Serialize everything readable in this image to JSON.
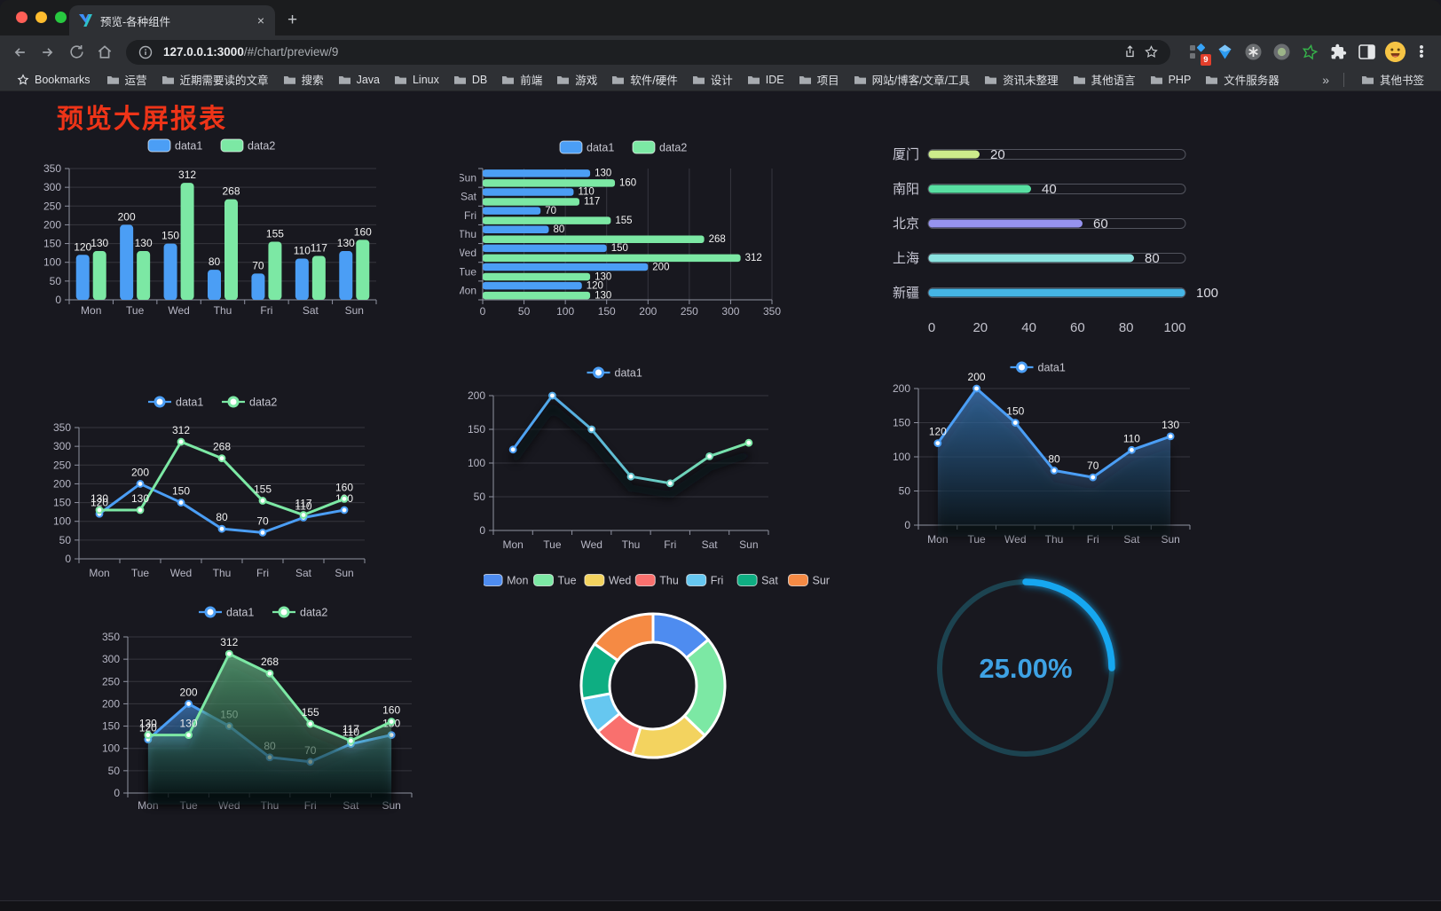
{
  "browser": {
    "traffic_lights": [
      "#ff5f57",
      "#febc2e",
      "#28c840"
    ],
    "tab": {
      "title": "预览-各种组件",
      "close": "×",
      "new_tab": "+"
    },
    "url_host": "127.0.0.1:3000",
    "url_path": "/#/chart/preview/9",
    "extension_badge": "9",
    "bookmarks_bar": {
      "star_label": "Bookmarks",
      "folders": [
        "运营",
        "近期需要读的文章",
        "搜索",
        "Java",
        "Linux",
        "DB",
        "前端",
        "游戏",
        "软件/硬件",
        "设计",
        "IDE",
        "项目",
        "网站/博客/文章/工具",
        "资讯未整理",
        "其他语言",
        "PHP",
        "文件服务器"
      ],
      "overflow": "»",
      "other": "其他书签"
    }
  },
  "page": {
    "title": "预览大屏报表"
  },
  "colors": {
    "data1": "#4b9ef5",
    "data2": "#7ce8a4",
    "title_red": "#ee3418",
    "axis": "#9093a2",
    "grid": "#36363f",
    "tick_text": "#b7b7c5",
    "value_text": "#f2f2f2"
  },
  "chart_data": [
    {
      "type": "bar",
      "categories": [
        "Mon",
        "Tue",
        "Wed",
        "Thu",
        "Fri",
        "Sat",
        "Sun"
      ],
      "series": [
        {
          "name": "data1",
          "color": "#4b9ef5",
          "values": [
            120,
            200,
            150,
            80,
            70,
            110,
            130
          ]
        },
        {
          "name": "data2",
          "color": "#7ce8a4",
          "values": [
            130,
            130,
            312,
            268,
            155,
            117,
            160
          ]
        }
      ],
      "ylim": [
        0,
        350
      ],
      "ystep": 50,
      "legend_position": "top",
      "grid": true,
      "point_labels": true
    },
    {
      "type": "bar-horizontal",
      "categories": [
        "Mon",
        "Tue",
        "Wed",
        "Thu",
        "Fri",
        "Sat",
        "Sun"
      ],
      "display_order": "Sun-at-top",
      "series": [
        {
          "name": "data1",
          "color": "#4b9ef5",
          "values": [
            120,
            200,
            150,
            80,
            70,
            110,
            130
          ]
        },
        {
          "name": "data2",
          "color": "#7ce8a4",
          "values": [
            130,
            130,
            312,
            268,
            155,
            117,
            160
          ]
        }
      ],
      "xlim": [
        0,
        350
      ],
      "xstep": 50,
      "legend_position": "top",
      "grid": true,
      "point_labels": true
    },
    {
      "type": "progress-bars",
      "categories": [
        "厦门",
        "南阳",
        "北京",
        "上海",
        "新疆"
      ],
      "values": [
        20,
        40,
        60,
        80,
        100
      ],
      "colors": [
        "#cdeb8b",
        "#58dfa2",
        "#9693ef",
        "#8be3e0",
        "#45b5e5"
      ],
      "xlim": [
        0,
        100
      ],
      "xticks": [
        0,
        20,
        40,
        60,
        80,
        100
      ]
    },
    {
      "type": "line",
      "categories": [
        "Mon",
        "Tue",
        "Wed",
        "Thu",
        "Fri",
        "Sat",
        "Sun"
      ],
      "series": [
        {
          "name": "data1",
          "color": "#4b9ef5",
          "values": [
            120,
            200,
            150,
            80,
            70,
            110,
            130
          ]
        },
        {
          "name": "data2",
          "color": "#7ce8a4",
          "values": [
            130,
            130,
            312,
            268,
            155,
            117,
            160
          ]
        }
      ],
      "ylim": [
        0,
        350
      ],
      "ystep": 50,
      "legend_position": "top",
      "point_labels": true
    },
    {
      "type": "line",
      "categories": [
        "Mon",
        "Tue",
        "Wed",
        "Thu",
        "Fri",
        "Sat",
        "Sun"
      ],
      "series": [
        {
          "name": "data1",
          "color": "#4b9ef5",
          "gradient_to": "#7ce8a4",
          "values": [
            120,
            200,
            150,
            80,
            70,
            110,
            130
          ]
        }
      ],
      "ylim": [
        0,
        200
      ],
      "ystep": 50,
      "legend_position": "top",
      "point_labels": false,
      "shadow": true
    },
    {
      "type": "area",
      "categories": [
        "Mon",
        "Tue",
        "Wed",
        "Thu",
        "Fri",
        "Sat",
        "Sun"
      ],
      "series": [
        {
          "name": "data1",
          "color": "#4b9ef5",
          "values": [
            120,
            200,
            150,
            80,
            70,
            110,
            130
          ]
        }
      ],
      "ylim": [
        0,
        200
      ],
      "ystep": 50,
      "legend_position": "top",
      "point_labels": true,
      "shadow": true
    },
    {
      "type": "area",
      "categories": [
        "Mon",
        "Tue",
        "Wed",
        "Thu",
        "Fri",
        "Sat",
        "Sun"
      ],
      "series": [
        {
          "name": "data1",
          "color": "#4b9ef5",
          "values": [
            120,
            200,
            150,
            80,
            70,
            110,
            130
          ]
        },
        {
          "name": "data2",
          "color": "#7ce8a4",
          "values": [
            130,
            130,
            312,
            268,
            155,
            117,
            160
          ]
        }
      ],
      "ylim": [
        0,
        350
      ],
      "ystep": 50,
      "legend_position": "top",
      "point_labels": true,
      "shadow": true
    },
    {
      "type": "pie",
      "categories": [
        "Mon",
        "Tue",
        "Wed",
        "Thu",
        "Fri",
        "Sat",
        "Sun"
      ],
      "values": [
        120,
        200,
        150,
        80,
        70,
        110,
        130
      ],
      "colors": [
        "#4e8cf0",
        "#7ce8a4",
        "#f3d35f",
        "#f9706e",
        "#66c7f0",
        "#0eae82",
        "#f58a44"
      ],
      "inner_radius_ratio": 0.6,
      "legend_position": "top",
      "border_color": "#ffffff"
    },
    {
      "type": "gauge",
      "value": 25,
      "label": "25.00%",
      "color": "#18a7f0",
      "track_color": "#1c4350",
      "text_color": "#3ea2e4"
    }
  ]
}
